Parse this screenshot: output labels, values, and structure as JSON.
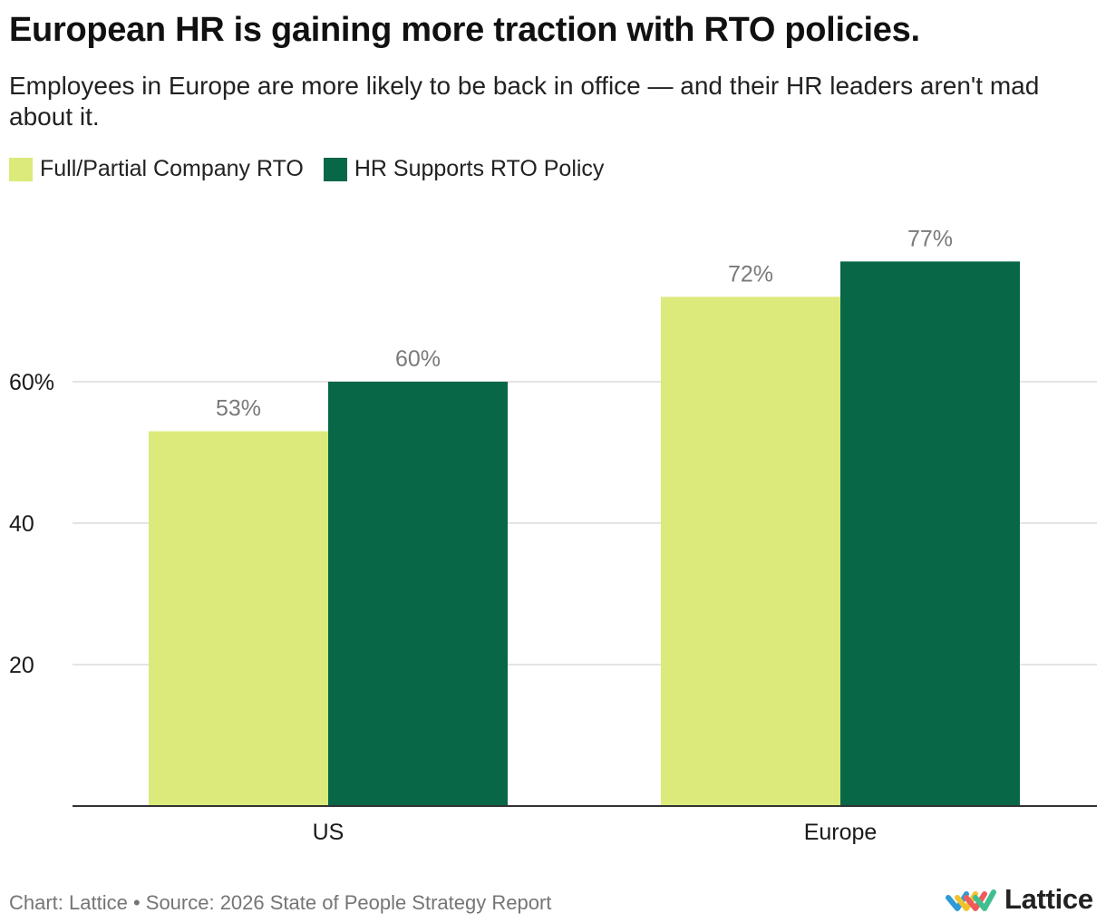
{
  "colors": {
    "series_light": "#dbea7a",
    "series_dark": "#076746",
    "grid": "#dcdcdc",
    "axis": "#333333",
    "value_label": "#7a7a7a",
    "tick_label": "#1a1a1a"
  },
  "footer": {
    "credit": "Chart: Lattice • Source: 2026 State of People Strategy Report"
  },
  "logo": {
    "icon": "lattice-logo-icon",
    "text": "Lattice"
  },
  "chart_data": {
    "type": "bar",
    "title": "European HR is gaining more traction with RTO policies.",
    "subtitle": "Employees in Europe are more likely to be back in office — and their HR leaders aren't mad about it.",
    "categories": [
      "US",
      "Europe"
    ],
    "series": [
      {
        "name": "Full/Partial Company RTO",
        "values": [
          53,
          72
        ],
        "labels": [
          "53%",
          "72%"
        ],
        "color": "#dbea7a"
      },
      {
        "name": "HR Supports RTO Policy",
        "values": [
          60,
          77
        ],
        "labels": [
          "60%",
          "77%"
        ],
        "color": "#076746"
      }
    ],
    "yticks": [
      20,
      40,
      60
    ],
    "ytick_labels": [
      "20",
      "40",
      "60%"
    ],
    "ylim": [
      0,
      80
    ],
    "xlabel": "",
    "ylabel": "",
    "grid": true,
    "legend": "top-left"
  }
}
